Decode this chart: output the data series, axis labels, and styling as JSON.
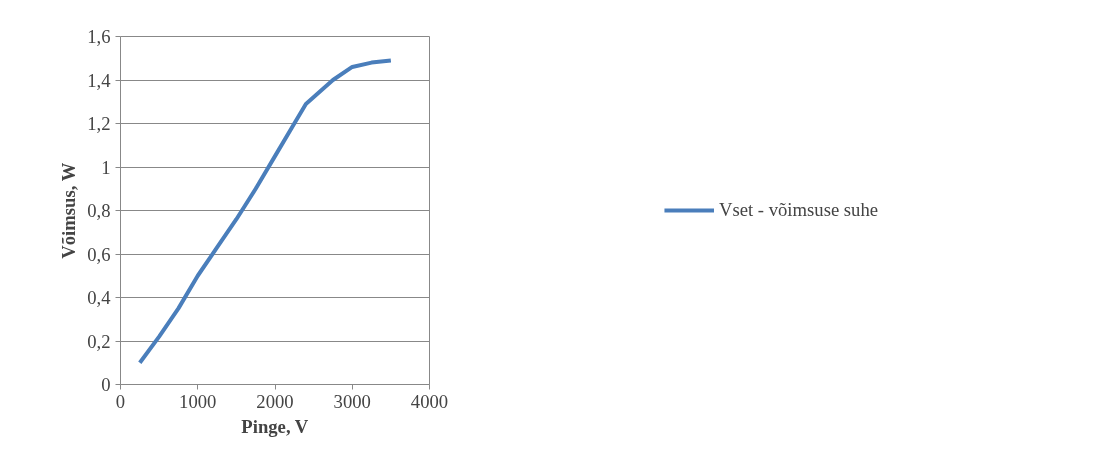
{
  "chart_data": {
    "type": "line",
    "xlabel": "Pinge, V",
    "ylabel": "Võimsus, W",
    "x": [
      250,
      500,
      750,
      1000,
      1250,
      1500,
      1750,
      2000,
      2250,
      2400,
      2750,
      3000,
      3250,
      3500
    ],
    "series": [
      {
        "name": "Vset - võimsuse suhe",
        "color": "#4a7ebb",
        "values": [
          0.1,
          0.22,
          0.35,
          0.5,
          0.63,
          0.76,
          0.9,
          1.05,
          1.2,
          1.29,
          1.4,
          1.46,
          1.48,
          1.49
        ]
      }
    ],
    "xlim": [
      0,
      4000
    ],
    "xticks": [
      0,
      1000,
      2000,
      3000,
      4000
    ],
    "ylim": [
      0,
      1.6
    ],
    "yticks": [
      0,
      {
        "value": 0.2,
        "label": "0,2"
      },
      {
        "value": 0.4,
        "label": "0,4"
      },
      {
        "value": 0.6,
        "label": "0,6"
      },
      {
        "value": 0.8,
        "label": "0,8"
      },
      1,
      {
        "value": 1.2,
        "label": "1,2"
      },
      {
        "value": 1.4,
        "label": "1,4"
      },
      {
        "value": 1.6,
        "label": "1,6"
      }
    ],
    "grid": "y",
    "legend": "right",
    "marker": "none",
    "line_style": "solid"
  }
}
